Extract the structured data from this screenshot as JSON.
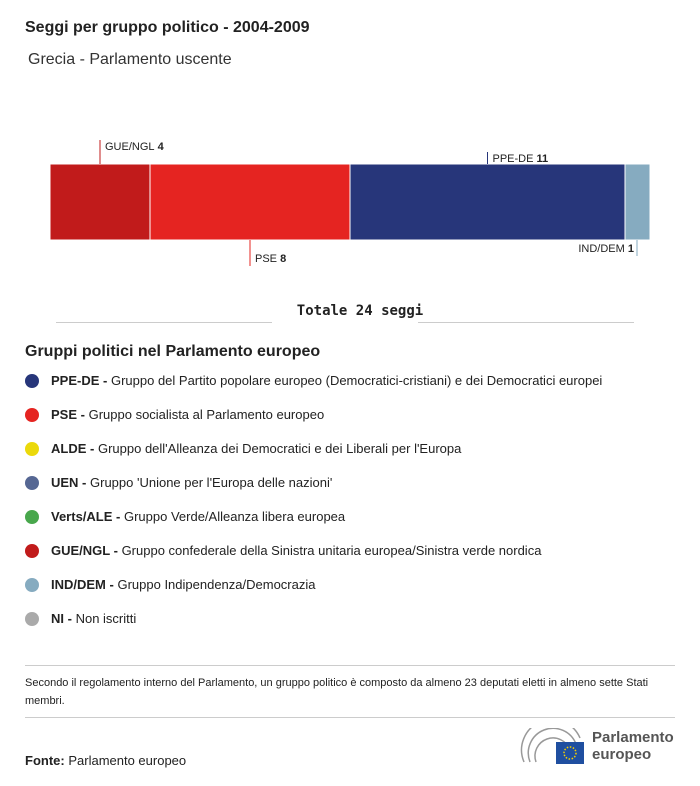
{
  "title": "Seggi per gruppo politico - 2004-2009",
  "subtitle": "Grecia - Parlamento uscente",
  "chart_data": {
    "type": "bar",
    "orientation": "horizontal-stacked",
    "categories": [
      "GUE/NGL",
      "PSE",
      "PPE-DE",
      "IND/DEM"
    ],
    "values": [
      4,
      8,
      11,
      1
    ],
    "colors": [
      "#c11b1b",
      "#e52421",
      "#27367a",
      "#86abc0"
    ],
    "total": 24
  },
  "total_label": "Totale 24 seggi",
  "legend_title": "Gruppi politici nel Parlamento europeo",
  "legend": [
    {
      "abbr": "PPE-DE -",
      "desc": "Gruppo del Partito popolare europeo (Democratici-cristiani) e dei Democratici europei",
      "color": "#27367a"
    },
    {
      "abbr": "PSE -",
      "desc": "Gruppo socialista al Parlamento europeo",
      "color": "#e52421"
    },
    {
      "abbr": "ALDE -",
      "desc": "Gruppo dell'Alleanza dei Democratici e dei Liberali per l'Europa",
      "color": "#ebd90b"
    },
    {
      "abbr": "UEN -",
      "desc": "Gruppo 'Unione per l'Europa delle nazioni'",
      "color": "#566793"
    },
    {
      "abbr": "Verts/ALE -",
      "desc": "Gruppo Verde/Alleanza libera europea",
      "color": "#48a74c"
    },
    {
      "abbr": "GUE/NGL -",
      "desc": "Gruppo confederale della Sinistra unitaria europea/Sinistra verde nordica",
      "color": "#c11b1b"
    },
    {
      "abbr": "IND/DEM -",
      "desc": "Gruppo Indipendenza/Democrazia",
      "color": "#86abc0"
    },
    {
      "abbr": "NI -",
      "desc": "Non iscritti",
      "color": "#aaaaaa"
    }
  ],
  "note": "Secondo il regolamento interno del Parlamento, un gruppo politico è composto da almeno 23 deputati eletti in almeno sette Stati membri.",
  "source_label": "Fonte:",
  "source": "Parlamento europeo",
  "logo_line1": "Parlamento",
  "logo_line2": "europeo"
}
